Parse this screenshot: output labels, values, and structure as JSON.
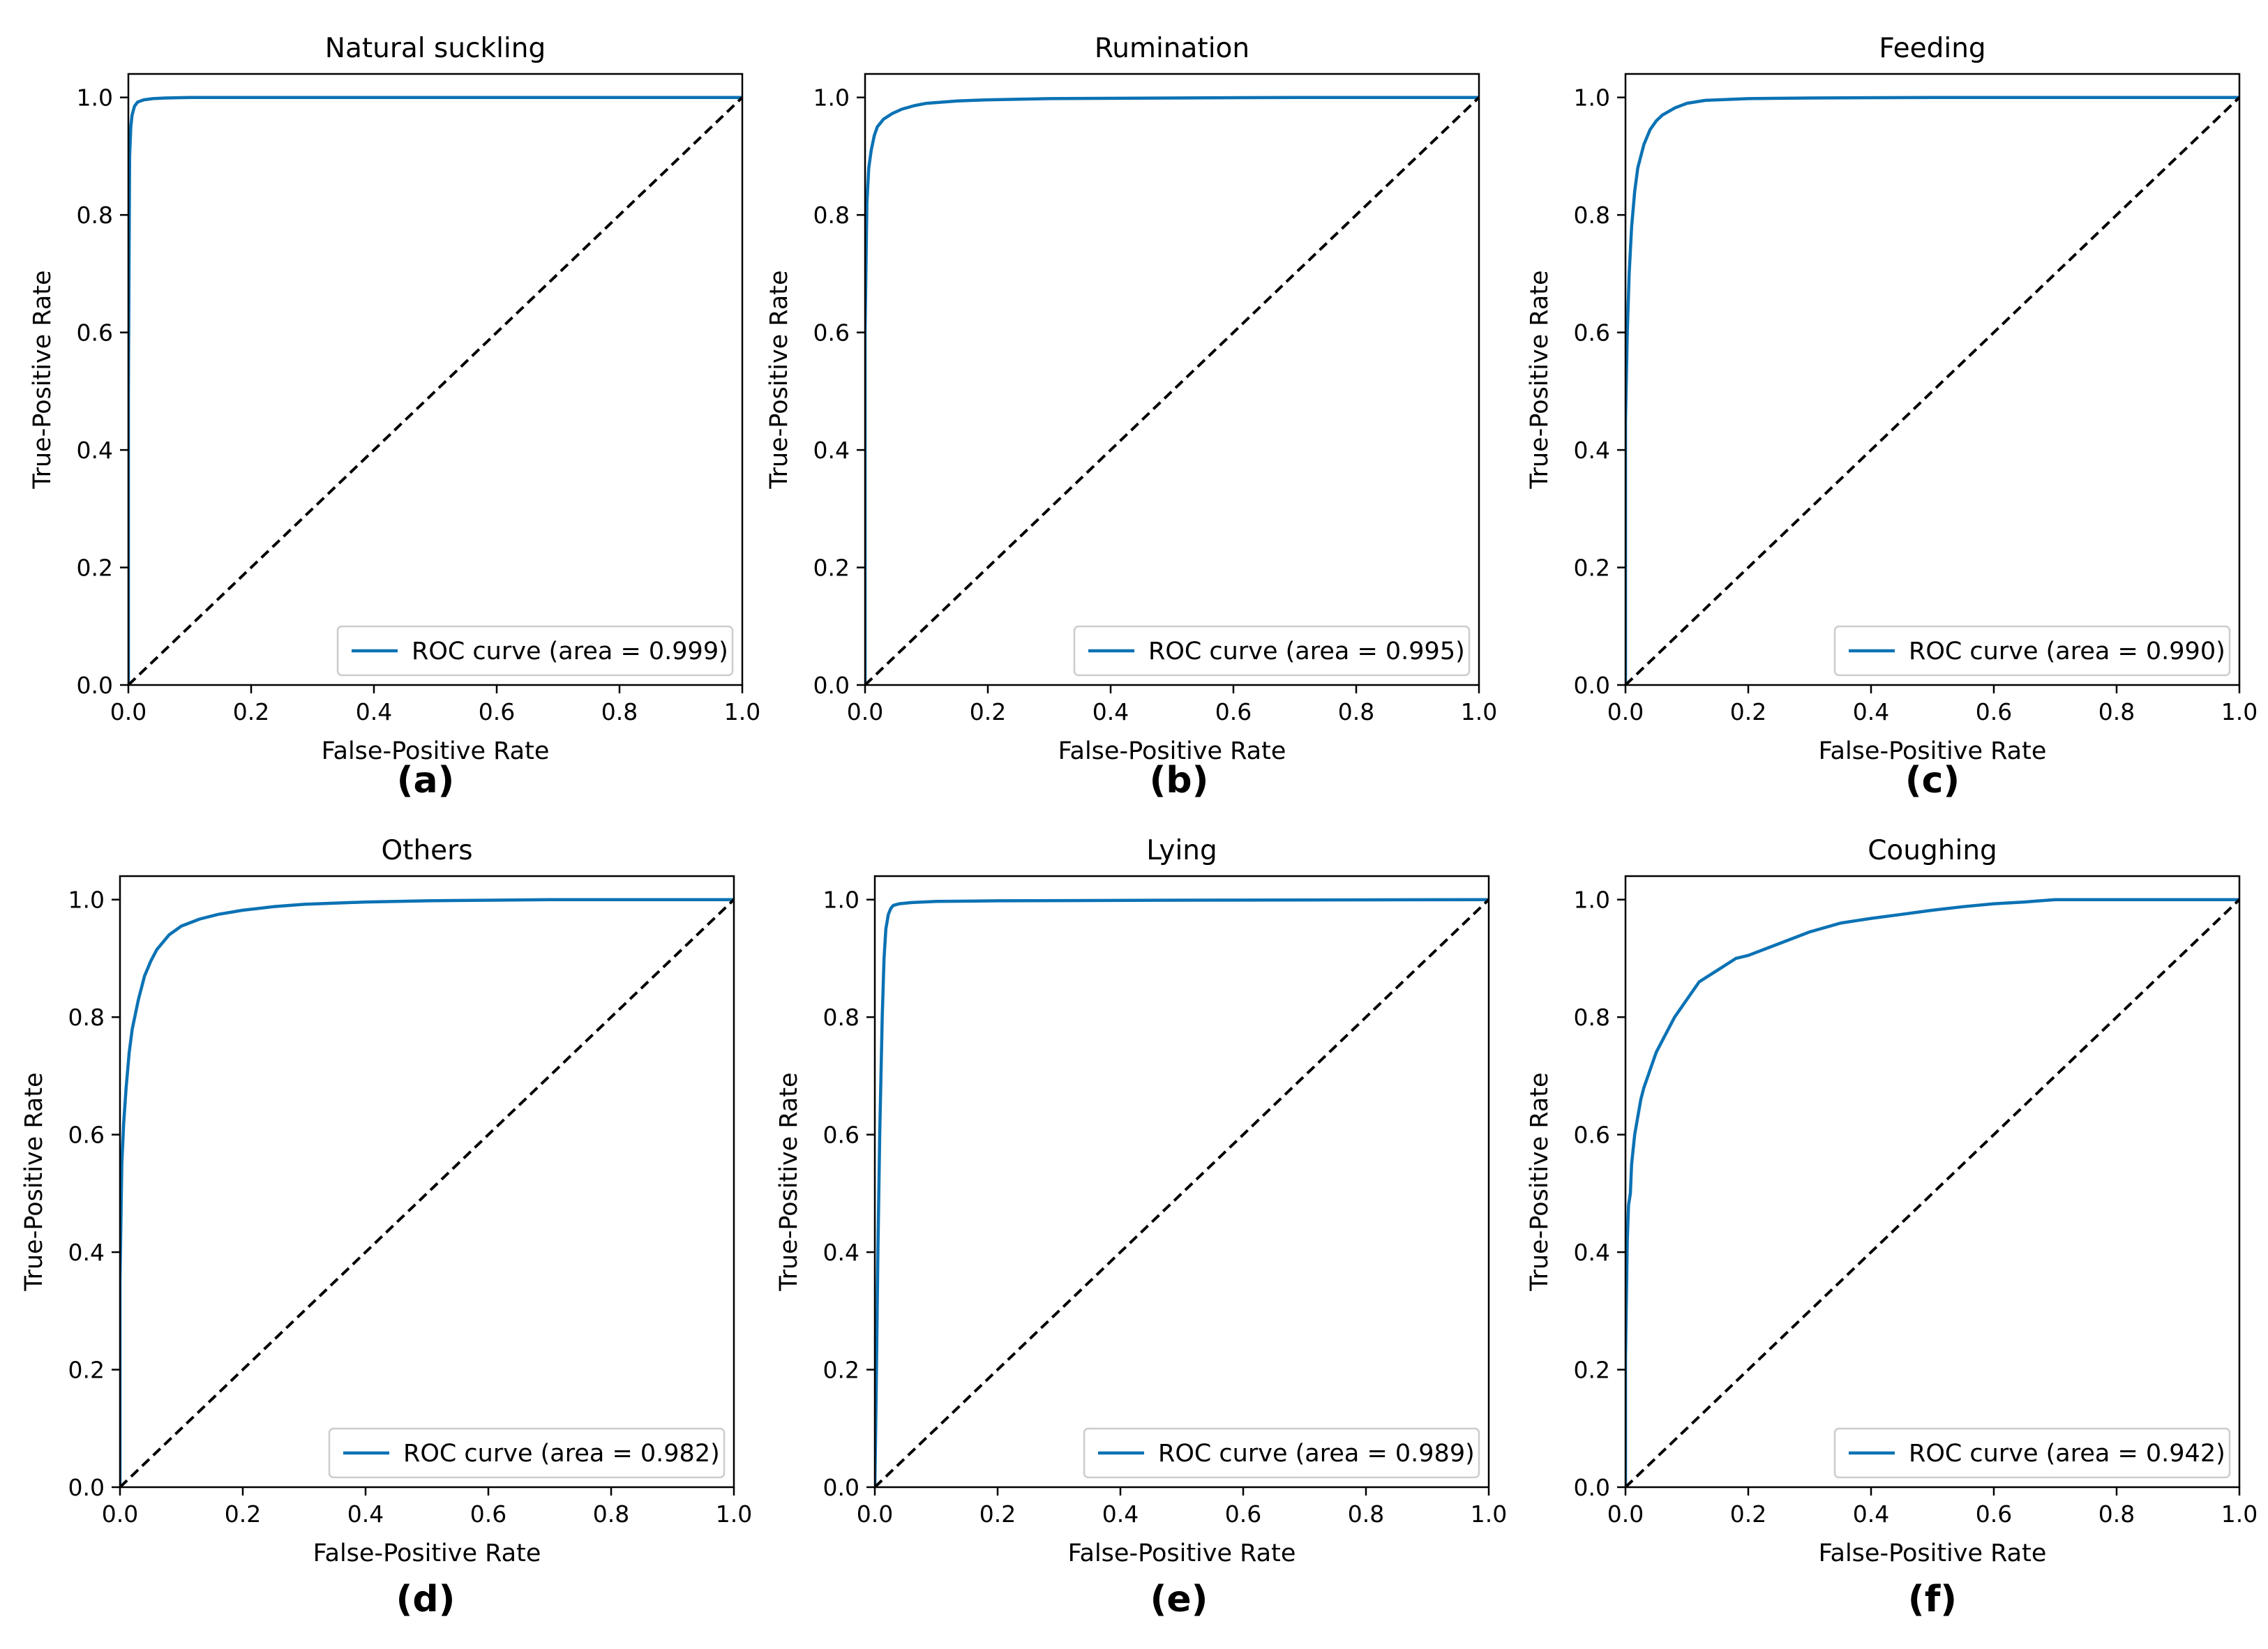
{
  "figure": {
    "panel_count": 6,
    "colors": {
      "roc": "#0b72b4",
      "chance": "#000000",
      "axes": "#000000",
      "legend_border": "#cccccc"
    }
  },
  "chart_data": [
    {
      "type": "line",
      "label": "(a)",
      "title": "Natural suckling",
      "xlabel": "False-Positive Rate",
      "ylabel": "True-Positive Rate",
      "xlim": [
        0,
        1
      ],
      "ylim": [
        0,
        1.04
      ],
      "xticks": [
        0,
        0.2,
        0.4,
        0.6,
        0.8,
        1.0
      ],
      "yticks": [
        0,
        0.2,
        0.4,
        0.6,
        0.8,
        1.0
      ],
      "legend_position": "lower-right",
      "series": [
        {
          "name": "ROC curve (area = 0.999)",
          "style": "solid",
          "x": [
            0,
            0,
            0.002,
            0.004,
            0.006,
            0.01,
            0.015,
            0.025,
            0.04,
            0.06,
            0.1,
            0.2,
            0.5,
            1.0
          ],
          "y": [
            0,
            0.5,
            0.9,
            0.95,
            0.97,
            0.985,
            0.992,
            0.996,
            0.998,
            0.999,
            1.0,
            1.0,
            1.0,
            1.0
          ]
        },
        {
          "name": "chance",
          "style": "dashed",
          "x": [
            0,
            1
          ],
          "y": [
            0,
            1
          ]
        }
      ]
    },
    {
      "type": "line",
      "label": "(b)",
      "title": "Rumination",
      "xlabel": "False-Positive Rate",
      "ylabel": "True-Positive Rate",
      "xlim": [
        0,
        1
      ],
      "ylim": [
        0,
        1.04
      ],
      "xticks": [
        0,
        0.2,
        0.4,
        0.6,
        0.8,
        1.0
      ],
      "yticks": [
        0,
        0.2,
        0.4,
        0.6,
        0.8,
        1.0
      ],
      "legend_position": "lower-right",
      "series": [
        {
          "name": "ROC curve (area = 0.995)",
          "style": "solid",
          "x": [
            0,
            0,
            0.003,
            0.006,
            0.01,
            0.015,
            0.02,
            0.03,
            0.045,
            0.06,
            0.08,
            0.1,
            0.15,
            0.2,
            0.3,
            0.5,
            0.7,
            1.0
          ],
          "y": [
            0,
            0.6,
            0.82,
            0.88,
            0.91,
            0.935,
            0.95,
            0.963,
            0.973,
            0.98,
            0.986,
            0.99,
            0.994,
            0.996,
            0.998,
            0.999,
            1.0,
            1.0
          ]
        },
        {
          "name": "chance",
          "style": "dashed",
          "x": [
            0,
            1
          ],
          "y": [
            0,
            1
          ]
        }
      ]
    },
    {
      "type": "line",
      "label": "(c)",
      "title": "Feeding",
      "xlabel": "False-Positive Rate",
      "ylabel": "True-Positive Rate",
      "xlim": [
        0,
        1
      ],
      "ylim": [
        0,
        1.04
      ],
      "xticks": [
        0,
        0.2,
        0.4,
        0.6,
        0.8,
        1.0
      ],
      "yticks": [
        0,
        0.2,
        0.4,
        0.6,
        0.8,
        1.0
      ],
      "legend_position": "lower-right",
      "series": [
        {
          "name": "ROC curve (area = 0.990)",
          "style": "solid",
          "x": [
            0,
            0,
            0.003,
            0.006,
            0.01,
            0.015,
            0.02,
            0.03,
            0.04,
            0.05,
            0.06,
            0.08,
            0.1,
            0.13,
            0.2,
            0.3,
            0.5,
            1.0
          ],
          "y": [
            0,
            0.45,
            0.6,
            0.7,
            0.78,
            0.84,
            0.88,
            0.92,
            0.945,
            0.96,
            0.97,
            0.982,
            0.99,
            0.995,
            0.998,
            0.999,
            1.0,
            1.0
          ]
        },
        {
          "name": "chance",
          "style": "dashed",
          "x": [
            0,
            1
          ],
          "y": [
            0,
            1
          ]
        }
      ]
    },
    {
      "type": "line",
      "label": "(d)",
      "title": "Others",
      "xlabel": "False-Positive Rate",
      "ylabel": "True-Positive Rate",
      "xlim": [
        0,
        1
      ],
      "ylim": [
        0,
        1.04
      ],
      "xticks": [
        0,
        0.2,
        0.4,
        0.6,
        0.8,
        1.0
      ],
      "yticks": [
        0,
        0.2,
        0.4,
        0.6,
        0.8,
        1.0
      ],
      "legend_position": "lower-right",
      "series": [
        {
          "name": "ROC curve (area = 0.982)",
          "style": "solid",
          "x": [
            0,
            0,
            0.003,
            0.006,
            0.01,
            0.015,
            0.02,
            0.03,
            0.04,
            0.05,
            0.06,
            0.08,
            0.1,
            0.13,
            0.16,
            0.2,
            0.25,
            0.3,
            0.4,
            0.5,
            0.7,
            1.0
          ],
          "y": [
            0,
            0.35,
            0.55,
            0.62,
            0.68,
            0.74,
            0.78,
            0.83,
            0.87,
            0.895,
            0.915,
            0.94,
            0.955,
            0.967,
            0.975,
            0.982,
            0.988,
            0.992,
            0.996,
            0.998,
            1.0,
            1.0
          ]
        },
        {
          "name": "chance",
          "style": "dashed",
          "x": [
            0,
            1
          ],
          "y": [
            0,
            1
          ]
        }
      ]
    },
    {
      "type": "line",
      "label": "(e)",
      "title": "Lying",
      "xlabel": "False-Positive Rate",
      "ylabel": "True-Positive Rate",
      "xlim": [
        0,
        1
      ],
      "ylim": [
        0,
        1.04
      ],
      "xticks": [
        0,
        0.2,
        0.4,
        0.6,
        0.8,
        1.0
      ],
      "yticks": [
        0,
        0.2,
        0.4,
        0.6,
        0.8,
        1.0
      ],
      "legend_position": "lower-right",
      "series": [
        {
          "name": "ROC curve (area = 0.989)",
          "style": "solid",
          "x": [
            0,
            0.002,
            0.005,
            0.008,
            0.012,
            0.015,
            0.018,
            0.022,
            0.026,
            0.03,
            0.04,
            0.06,
            0.1,
            0.2,
            0.5,
            1.0
          ],
          "y": [
            0,
            0.15,
            0.4,
            0.6,
            0.8,
            0.9,
            0.95,
            0.975,
            0.985,
            0.99,
            0.993,
            0.995,
            0.997,
            0.998,
            0.999,
            1.0
          ]
        },
        {
          "name": "chance",
          "style": "dashed",
          "x": [
            0,
            1
          ],
          "y": [
            0,
            1
          ]
        }
      ]
    },
    {
      "type": "line",
      "label": "(f)",
      "title": "Coughing",
      "xlabel": "False-Positive Rate",
      "ylabel": "True-Positive Rate",
      "xlim": [
        0,
        1
      ],
      "ylim": [
        0,
        1.04
      ],
      "xticks": [
        0,
        0.2,
        0.4,
        0.6,
        0.8,
        1.0
      ],
      "yticks": [
        0,
        0.2,
        0.4,
        0.6,
        0.8,
        1.0
      ],
      "legend_position": "lower-right",
      "series": [
        {
          "name": "ROC curve (area = 0.942)",
          "style": "solid",
          "x": [
            0,
            0,
            0.003,
            0.005,
            0.008,
            0.01,
            0.015,
            0.02,
            0.025,
            0.03,
            0.04,
            0.05,
            0.06,
            0.08,
            0.1,
            0.12,
            0.15,
            0.18,
            0.2,
            0.25,
            0.3,
            0.35,
            0.4,
            0.45,
            0.5,
            0.55,
            0.6,
            0.65,
            0.7,
            0.8,
            1.0
          ],
          "y": [
            0,
            0.22,
            0.42,
            0.48,
            0.5,
            0.55,
            0.6,
            0.63,
            0.66,
            0.68,
            0.71,
            0.74,
            0.76,
            0.8,
            0.83,
            0.86,
            0.88,
            0.9,
            0.905,
            0.925,
            0.945,
            0.96,
            0.968,
            0.975,
            0.982,
            0.988,
            0.993,
            0.996,
            1.0,
            1.0,
            1.0
          ]
        },
        {
          "name": "chance",
          "style": "dashed",
          "x": [
            0,
            1
          ],
          "y": [
            0,
            1
          ]
        }
      ]
    }
  ]
}
